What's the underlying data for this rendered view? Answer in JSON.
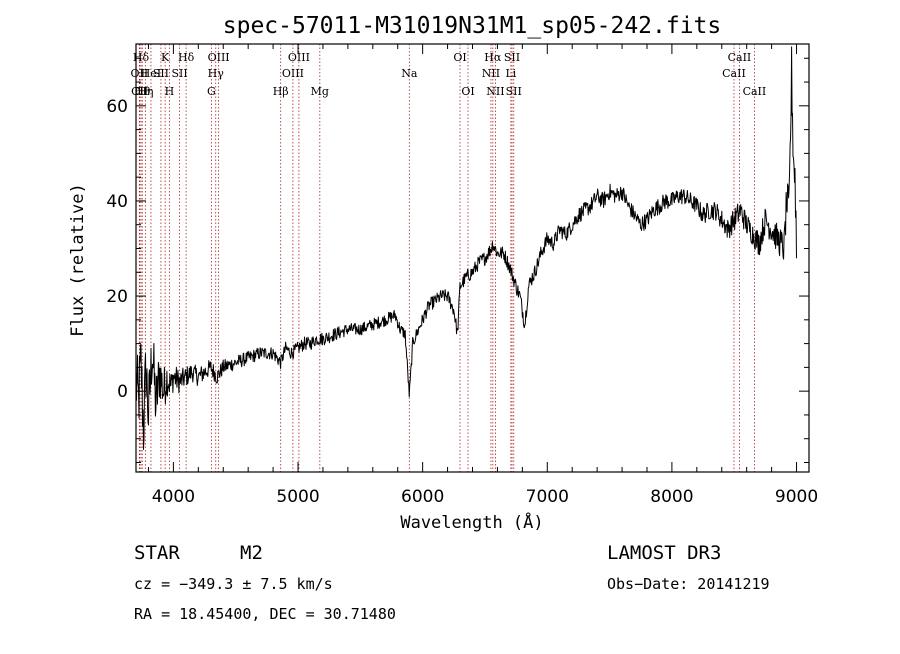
{
  "chart_data": {
    "type": "line",
    "title": "spec-57011-M31019N31M1_sp05-242.fits",
    "xlabel": "Wavelength (Å)",
    "ylabel": "Flux (relative)",
    "xlim": [
      3700,
      9100
    ],
    "ylim": [
      -17,
      73
    ],
    "xticks": [
      4000,
      5000,
      6000,
      7000,
      8000,
      9000
    ],
    "yticks": [
      0,
      20,
      40,
      60
    ],
    "spectrum_anchors": {
      "x": [
        3700,
        3720,
        3740,
        3760,
        3780,
        3800,
        3830,
        3860,
        3890,
        3920,
        3950,
        3980,
        4000,
        4050,
        4100,
        4150,
        4200,
        4250,
        4300,
        4350,
        4400,
        4500,
        4600,
        4700,
        4800,
        4861,
        4900,
        4950,
        5000,
        5050,
        5100,
        5150,
        5200,
        5300,
        5400,
        5500,
        5600,
        5700,
        5780,
        5820,
        5860,
        5893,
        5920,
        5950,
        6000,
        6050,
        6100,
        6150,
        6200,
        6250,
        6280,
        6300,
        6350,
        6400,
        6450,
        6500,
        6550,
        6563,
        6600,
        6650,
        6700,
        6750,
        6780,
        6800,
        6820,
        6850,
        6880,
        6900,
        6950,
        7000,
        7050,
        7100,
        7150,
        7200,
        7250,
        7300,
        7350,
        7400,
        7450,
        7500,
        7550,
        7600,
        7650,
        7700,
        7750,
        7800,
        7850,
        7900,
        7950,
        8000,
        8050,
        8100,
        8150,
        8200,
        8250,
        8300,
        8350,
        8400,
        8450,
        8500,
        8550,
        8600,
        8650,
        8700,
        8750,
        8800,
        8850,
        8900,
        8920,
        8940,
        8960,
        8975,
        8990,
        9000
      ],
      "y": [
        2,
        -2,
        6,
        -8,
        5,
        -5,
        9,
        -3,
        4,
        0,
        3,
        1,
        3,
        2,
        3,
        4,
        3,
        4,
        5,
        3,
        5,
        6,
        7,
        8,
        8,
        6,
        9,
        8,
        9,
        10,
        10,
        11,
        11,
        12,
        13,
        13,
        14,
        15,
        16,
        13,
        12,
        -1,
        10,
        12,
        15,
        18,
        19,
        20,
        20,
        17,
        12,
        22,
        24,
        25,
        27,
        28,
        30,
        31,
        29,
        29,
        26,
        22,
        20,
        17,
        14,
        22,
        24,
        25,
        29,
        32,
        31,
        34,
        33,
        35,
        37,
        38,
        39,
        41,
        40,
        42,
        41,
        42,
        39,
        37,
        35,
        36,
        38,
        39,
        40,
        40,
        41,
        41,
        40,
        39,
        37,
        38,
        38,
        36,
        34,
        36,
        38,
        35,
        33,
        31,
        36,
        34,
        32,
        30,
        40,
        38,
        67,
        50,
        44,
        30
      ],
      "noise": [
        8,
        8,
        8,
        8,
        8,
        8,
        7,
        7,
        6,
        5,
        4,
        3,
        3,
        2.5,
        2.2,
        2,
        2,
        2,
        1.8,
        1.8,
        1.6,
        1.5,
        1.4,
        1.4,
        1.4,
        1.4,
        1.4,
        1.4,
        1.4,
        1.4,
        1.4,
        1.4,
        1.4,
        1.4,
        1.3,
        1.3,
        1.3,
        1.3,
        1.3,
        1.3,
        1.3,
        1.3,
        1.3,
        1.3,
        1.4,
        1.4,
        1.4,
        1.4,
        1.4,
        1.4,
        1.4,
        1.5,
        1.5,
        1.5,
        1.5,
        1.5,
        1.5,
        1.5,
        1.5,
        1.5,
        1.5,
        1.6,
        1.6,
        1.6,
        1.6,
        1.6,
        1.6,
        1.6,
        1.6,
        1.6,
        1.6,
        1.6,
        1.6,
        1.7,
        1.7,
        1.7,
        1.7,
        1.7,
        1.7,
        1.7,
        1.7,
        1.7,
        1.7,
        1.7,
        1.7,
        1.7,
        1.7,
        1.8,
        1.8,
        1.8,
        1.8,
        1.8,
        1.8,
        1.8,
        2,
        2,
        2,
        2.2,
        2.2,
        2.5,
        2.5,
        2.5,
        2.5,
        2.8,
        2.8,
        3,
        3,
        3.5,
        4,
        5,
        6,
        6,
        6,
        6
      ]
    },
    "lines": [
      {
        "label": "Hδ",
        "x": 3740,
        "row": 0
      },
      {
        "label": "OII",
        "x": 3727,
        "row": 1
      },
      {
        "label": "CII",
        "x": 3730,
        "row": 2
      },
      {
        "label": "Hθ",
        "x": 3750,
        "row": 2
      },
      {
        "label": "Hη",
        "x": 3775,
        "row": 2
      },
      {
        "label": "HeI",
        "x": 3820,
        "row": 1
      },
      {
        "label": "K",
        "x": 3934,
        "row": 0
      },
      {
        "label": "SII",
        "x": 3900,
        "row": 1
      },
      {
        "label": "H",
        "x": 3968,
        "row": 2
      },
      {
        "label": "Hδ",
        "x": 4102,
        "row": 0
      },
      {
        "label": "SII",
        "x": 4050,
        "row": 1
      },
      {
        "label": "OIII",
        "x": 4363,
        "row": 0
      },
      {
        "label": "Hγ",
        "x": 4340,
        "row": 1
      },
      {
        "label": "G",
        "x": 4305,
        "row": 2
      },
      {
        "label": "OIII",
        "x": 5007,
        "row": 0
      },
      {
        "label": "OIII",
        "x": 4959,
        "row": 1
      },
      {
        "label": "Hβ",
        "x": 4861,
        "row": 2
      },
      {
        "label": "Mg",
        "x": 5175,
        "row": 2
      },
      {
        "label": "Na",
        "x": 5893,
        "row": 1
      },
      {
        "label": "OI",
        "x": 6300,
        "row": 0
      },
      {
        "label": "OI",
        "x": 6364,
        "row": 2
      },
      {
        "label": "Hα",
        "x": 6563,
        "row": 0
      },
      {
        "label": "SII",
        "x": 6717,
        "row": 0
      },
      {
        "label": "NII",
        "x": 6548,
        "row": 1
      },
      {
        "label": "Li",
        "x": 6708,
        "row": 1
      },
      {
        "label": "NII",
        "x": 6584,
        "row": 2
      },
      {
        "label": "SII",
        "x": 6731,
        "row": 2
      },
      {
        "label": "CaII",
        "x": 8542,
        "row": 0
      },
      {
        "label": "CaII",
        "x": 8498,
        "row": 1
      },
      {
        "label": "CaII",
        "x": 8662,
        "row": 2
      }
    ]
  },
  "info": {
    "object_type": "STAR",
    "subclass": "M2",
    "survey": "LAMOST DR3",
    "cz": "cz = −349.3 ± 7.5 km/s",
    "obs_date": "Obs−Date: 20141219",
    "coords": "RA =  18.45400, DEC =  30.71480"
  },
  "colors": {
    "axis": "#000000",
    "spectrum": "#000000",
    "line_marker": "#b22222"
  }
}
